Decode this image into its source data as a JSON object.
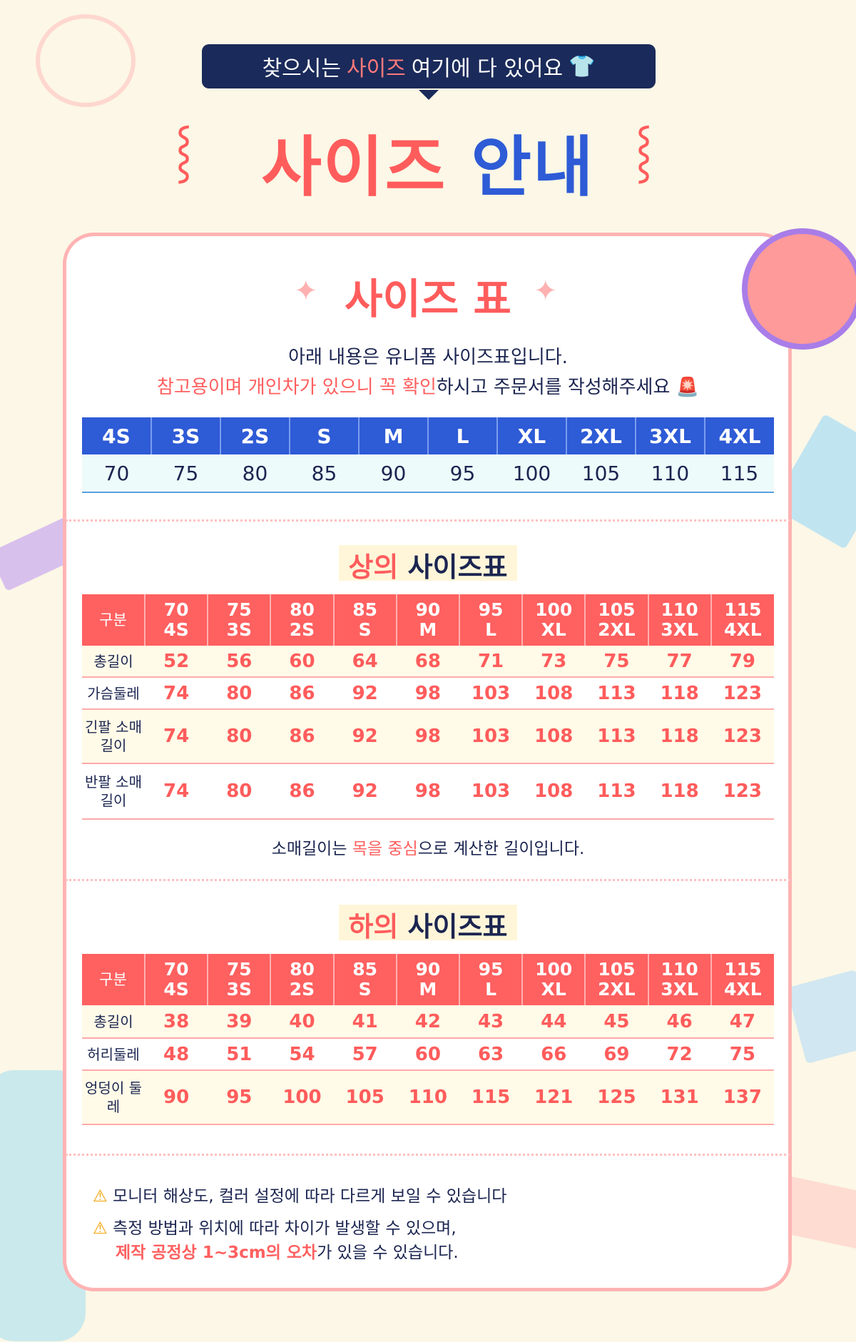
{
  "banner": {
    "pre": "찾으시는 ",
    "highlight": "사이즈",
    "post": " 여기에 다 있어요",
    "icon": "tshirt-icon"
  },
  "title": {
    "part1": "사이즈",
    "part2": "안내"
  },
  "card": {
    "heading": "사이즈 표",
    "intro_line1": "아래 내용은 유니폼 사이즈표입니다.",
    "intro_line2": {
      "r1": "참고용",
      "t1": "이며 ",
      "r2": "개인차",
      "t2": "가 있으니 ",
      "r3": "꼭 확인",
      "t3": "하시고 주문서를 작성해주세요",
      "icon": "siren-icon"
    },
    "size_table": {
      "sizes": [
        "4S",
        "3S",
        "2S",
        "S",
        "M",
        "L",
        "XL",
        "2XL",
        "3XL",
        "4XL"
      ],
      "numbers": [
        "70",
        "75",
        "80",
        "85",
        "90",
        "95",
        "100",
        "105",
        "110",
        "115"
      ]
    },
    "top": {
      "title_r": "상의",
      "title": "사이즈표",
      "header_label": "구분",
      "rows": [
        {
          "label": "총길이",
          "values": [
            "52",
            "56",
            "60",
            "64",
            "68",
            "71",
            "73",
            "75",
            "77",
            "79"
          ]
        },
        {
          "label": "가슴둘레",
          "values": [
            "74",
            "80",
            "86",
            "92",
            "98",
            "103",
            "108",
            "113",
            "118",
            "123"
          ]
        },
        {
          "label": "긴팔 소매길이",
          "values": [
            "74",
            "80",
            "86",
            "92",
            "98",
            "103",
            "108",
            "113",
            "118",
            "123"
          ]
        },
        {
          "label": "반팔 소매길이",
          "values": [
            "74",
            "80",
            "86",
            "92",
            "98",
            "103",
            "108",
            "113",
            "118",
            "123"
          ]
        }
      ],
      "note": {
        "t1": "소매길이는 ",
        "r1": "목을 중심",
        "t2": "으로 계산한 길이입니다."
      }
    },
    "bottom": {
      "title_r": "하의",
      "title": "사이즈표",
      "header_label": "구분",
      "rows": [
        {
          "label": "총길이",
          "values": [
            "38",
            "39",
            "40",
            "41",
            "42",
            "43",
            "44",
            "45",
            "46",
            "47"
          ]
        },
        {
          "label": "허리둘레",
          "values": [
            "48",
            "51",
            "54",
            "57",
            "60",
            "63",
            "66",
            "69",
            "72",
            "75"
          ]
        },
        {
          "label": "엉덩이 둘레",
          "values": [
            "90",
            "95",
            "100",
            "105",
            "110",
            "115",
            "121",
            "125",
            "131",
            "137"
          ]
        }
      ]
    },
    "warnings": {
      "w1": "모니터 해상도, 컬러 설정에 따라 다르게 보일 수 있습니다",
      "w2": "측정 방법과 위치에 따라 차이가 발생할 수 있으며,",
      "w3_r": "제작 공정상 1~3cm의 오차",
      "w3": "가 있을 수 있습니다.",
      "icon": "warning-icon"
    }
  },
  "colors": {
    "accent_red": "#ff5f5f",
    "accent_blue": "#2e5bd6",
    "navy": "#1a2a5a",
    "background": "#fcf7e6"
  }
}
